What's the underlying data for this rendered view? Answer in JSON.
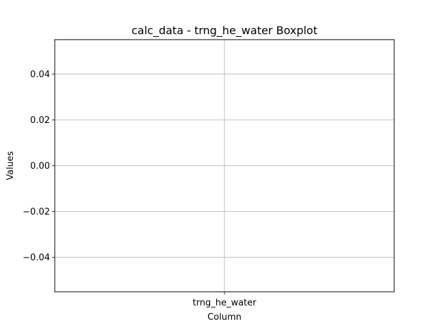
{
  "chart_data": {
    "type": "box",
    "title": "calc_data - trng_he_water Boxplot",
    "xlabel": "Column",
    "ylabel": "Values",
    "categories": [
      "trng_he_water"
    ],
    "series": [],
    "ylim": [
      -0.055,
      0.055
    ],
    "yticks": [
      0.04,
      0.02,
      0.0,
      -0.02,
      -0.04
    ],
    "ytick_labels": [
      "0.04",
      "0.02",
      "0.00",
      "−0.02",
      "−0.04"
    ],
    "grid": true,
    "colors": {
      "grid": "#b0b0b0",
      "axis": "#000000",
      "background": "#ffffff"
    }
  }
}
